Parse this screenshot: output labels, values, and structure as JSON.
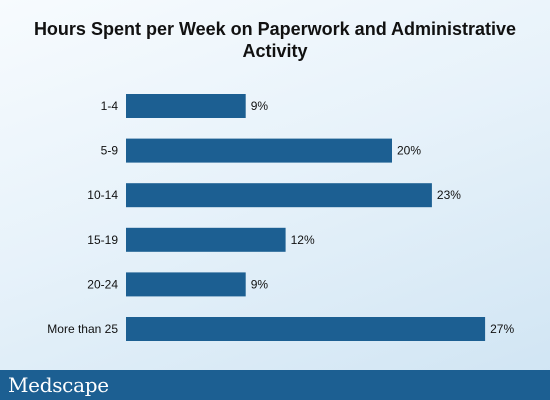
{
  "brand": "Medscape",
  "colors": {
    "bar": "#1c5f92",
    "footer": "#1c5f92",
    "text": "#111111"
  },
  "chart_data": {
    "type": "bar",
    "orientation": "horizontal",
    "title": "Hours Spent per Week on Paperwork and Administrative Activity",
    "categories": [
      "1-4",
      "5-9",
      "10-14",
      "15-19",
      "20-24",
      "More than 25"
    ],
    "values": [
      9,
      20,
      23,
      12,
      9,
      27
    ],
    "value_labels": [
      "9%",
      "20%",
      "23%",
      "12%",
      "9%",
      "27%"
    ],
    "xlabel": "",
    "ylabel": "",
    "xlim": [
      0,
      27
    ],
    "grid": false,
    "legend": "none"
  }
}
